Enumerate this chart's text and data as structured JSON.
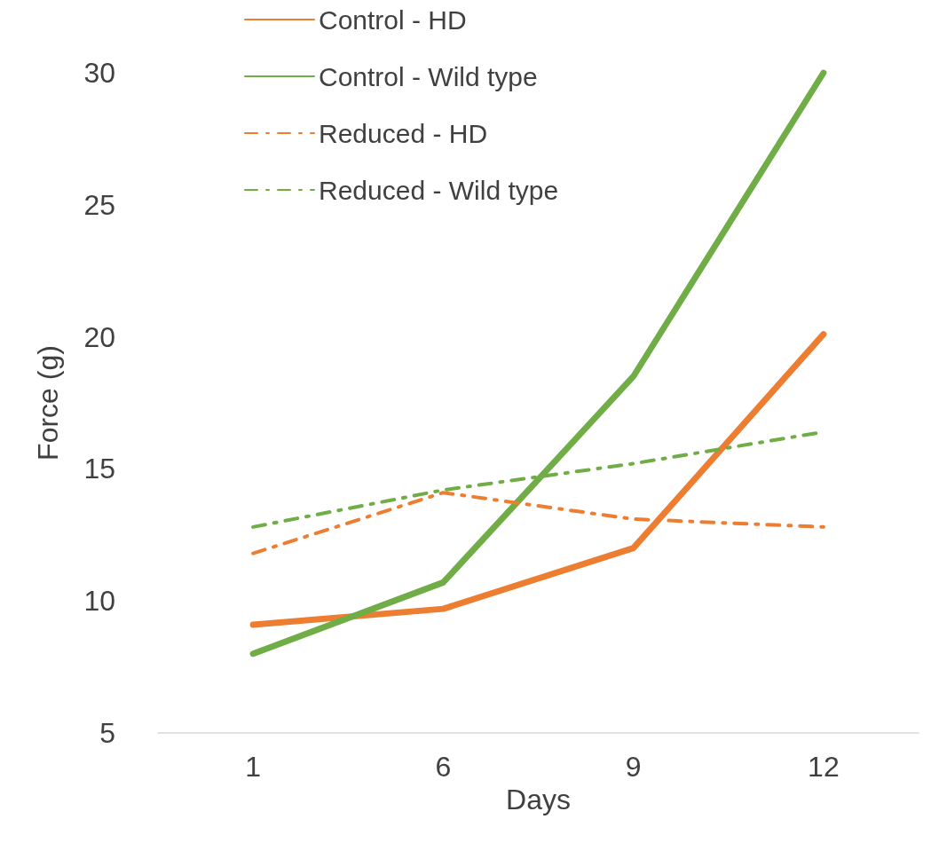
{
  "chart_data": {
    "type": "line",
    "xlabel": "Days",
    "ylabel": "Force (g)",
    "categories": [
      "1",
      "6",
      "9",
      "12"
    ],
    "series": [
      {
        "name": "Control - HD",
        "color": "#ed7d31",
        "line_style": "solid",
        "values": [
          9.1,
          9.7,
          12.0,
          20.1
        ]
      },
      {
        "name": "Control - Wild type",
        "color": "#70ad47",
        "line_style": "solid",
        "values": [
          8.0,
          10.7,
          18.5,
          30.0
        ]
      },
      {
        "name": "Reduced - HD",
        "color": "#ed7d31",
        "line_style": "dashed",
        "values": [
          11.8,
          14.1,
          13.1,
          12.8
        ]
      },
      {
        "name": "Reduced - Wild type",
        "color": "#70ad47",
        "line_style": "dashed",
        "values": [
          12.8,
          14.2,
          15.2,
          16.4
        ]
      }
    ],
    "ylim": [
      5,
      30
    ],
    "yticks": [
      5,
      10,
      15,
      20,
      25,
      30
    ],
    "grid": false,
    "legend": "top",
    "marker": "none"
  }
}
